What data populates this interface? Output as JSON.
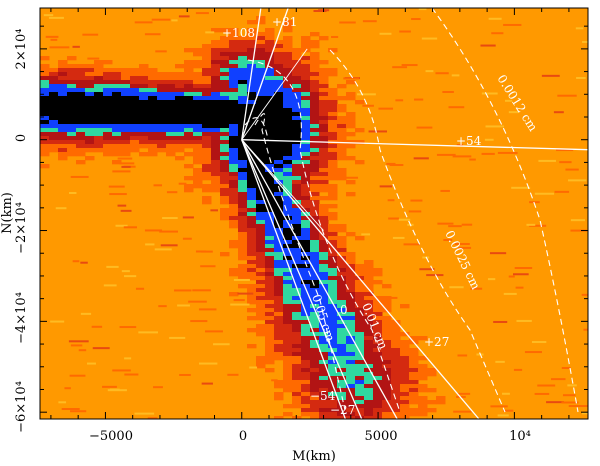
{
  "chart_data": {
    "type": "heatmap",
    "title": "",
    "xlabel": "M(km)",
    "ylabel": "N(km)",
    "xlim": [
      -7400,
      12700
    ],
    "ylim": [
      -61500,
      29000
    ],
    "x_ticks": [
      {
        "value": -5000,
        "label": "−5000"
      },
      {
        "value": 0,
        "label": "0"
      },
      {
        "value": 5000,
        "label": "5000"
      },
      {
        "value": 10000,
        "label": "10⁴"
      }
    ],
    "y_ticks": [
      {
        "value": 20000,
        "label": "2×10⁴"
      },
      {
        "value": 0,
        "label": "0"
      },
      {
        "value": -20000,
        "label": "−2×10⁴"
      },
      {
        "value": -40000,
        "label": "−4×10⁴"
      },
      {
        "value": -60000,
        "label": "−6×10⁴"
      }
    ],
    "colormap": [
      "#ff9900",
      "#ff6a00",
      "#d42a10",
      "#b21414",
      "#2fd8a0",
      "#1040ff",
      "#000000"
    ],
    "background_color": "#ff9900",
    "rays": [
      {
        "label": "+108",
        "end": [
          700,
          29000
        ]
      },
      {
        "label": "+81",
        "end": [
          1700,
          29000
        ]
      },
      {
        "label": "+54",
        "end": [
          12700,
          -2200
        ]
      },
      {
        "label": "+27",
        "end": [
          8700,
          -61500
        ]
      },
      {
        "label": "0",
        "end": [
          5700,
          -61500
        ]
      },
      {
        "label": "−27",
        "end": [
          4400,
          -61500
        ]
      },
      {
        "label": "−54",
        "end": [
          3800,
          -61500
        ]
      }
    ],
    "dust_contours": [
      {
        "label": "0.05 cm"
      },
      {
        "label": "0.01 cm"
      },
      {
        "label": "0.0025 cm"
      },
      {
        "label": "0.0012 cm"
      }
    ],
    "ray_labels": {
      "p108": "+108",
      "p81": "+81",
      "p54": "+54",
      "p27": "+27",
      "zero": "0",
      "m27": "−27",
      "m54": "−54"
    },
    "contour_labels": {
      "c005": "0.05 cm",
      "c001": "0.01 cm",
      "c00025": "0.0025 cm",
      "c00012": "0.0012 cm"
    }
  }
}
